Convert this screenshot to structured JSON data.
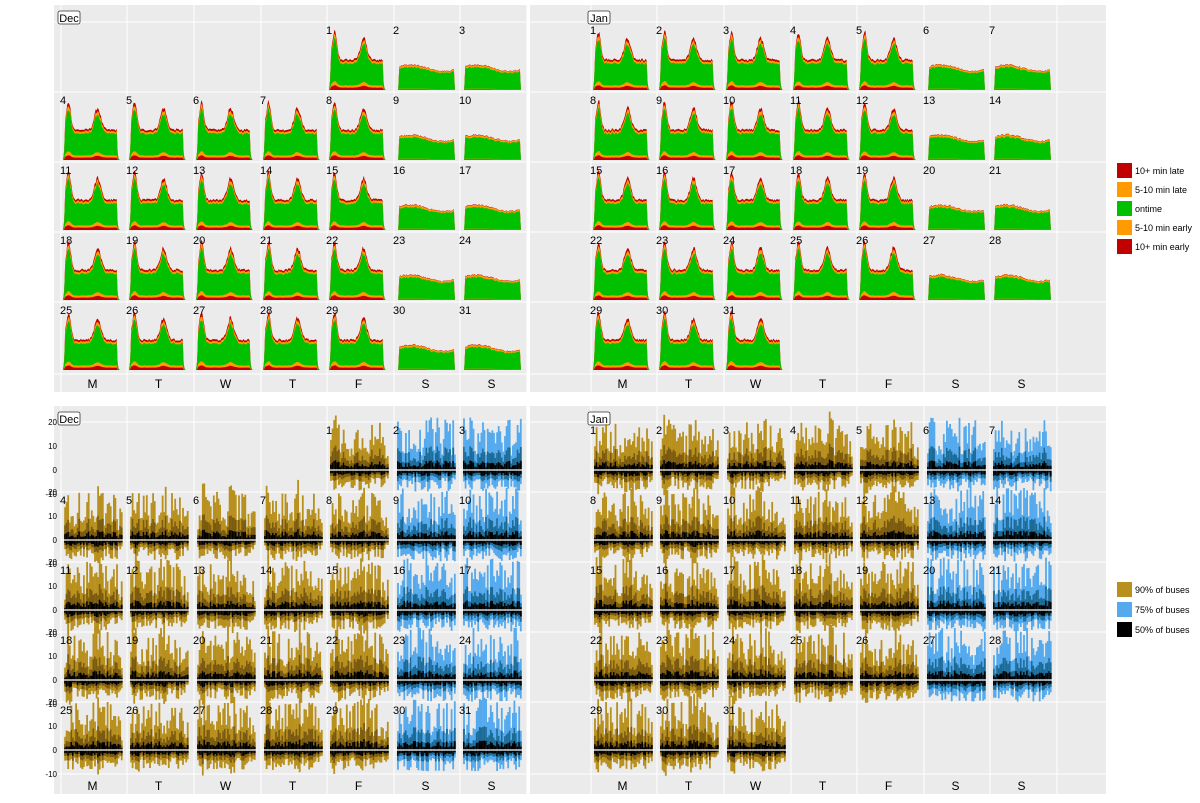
{
  "chart_data": [
    {
      "type": "area",
      "panel": "top",
      "description_kind": "calendar small-multiples of bus punctuality (stacked counts over day)",
      "months": [
        {
          "label": "Dec",
          "first_weekday": 4,
          "days": 31
        },
        {
          "label": "Jan",
          "first_weekday": 0,
          "days": 31
        }
      ],
      "weekday_labels": [
        "M",
        "T",
        "W",
        "T",
        "F",
        "S",
        "S"
      ],
      "legend": [
        {
          "label": "10+ min late",
          "color": "#c10000"
        },
        {
          "label": "5-10 min late",
          "color": "#ff9a00"
        },
        {
          "label": "ontime",
          "color": "#00c000"
        },
        {
          "label": "5-10 min early",
          "color": "#ff9a00"
        },
        {
          "label": "10+ min early",
          "color": "#c10000"
        }
      ],
      "legend_placement": "right",
      "grid": true
    },
    {
      "type": "area",
      "panel": "bottom",
      "description_kind": "calendar small-multiples of bus delay quantile bands over day",
      "months": [
        {
          "label": "Dec",
          "first_weekday": 4,
          "days": 31
        },
        {
          "label": "Jan",
          "first_weekday": 0,
          "days": 31
        }
      ],
      "weekday_labels": [
        "M",
        "T",
        "W",
        "T",
        "F",
        "S",
        "S"
      ],
      "y_ticks": [
        "20",
        "10",
        "0",
        "-10"
      ],
      "ylim": [
        -13,
        25
      ],
      "legend": [
        {
          "label": "90% of buses",
          "color": "#b8901e"
        },
        {
          "label": "75% of buses",
          "color": "#55aaee"
        },
        {
          "label": "50% of buses",
          "color": "#000000"
        }
      ],
      "legend_placement": "right",
      "grid": true
    }
  ],
  "colors": {
    "panel_bg": "#ebebeb",
    "grid": "#ffffff",
    "late10": "#c10000",
    "late5": "#ff9a00",
    "ontime": "#00c000",
    "gold": "#b8901e",
    "gold_dark": "#7a5a10",
    "blue": "#55aaee",
    "blue_dark": "#1c6b96",
    "black": "#000000"
  }
}
